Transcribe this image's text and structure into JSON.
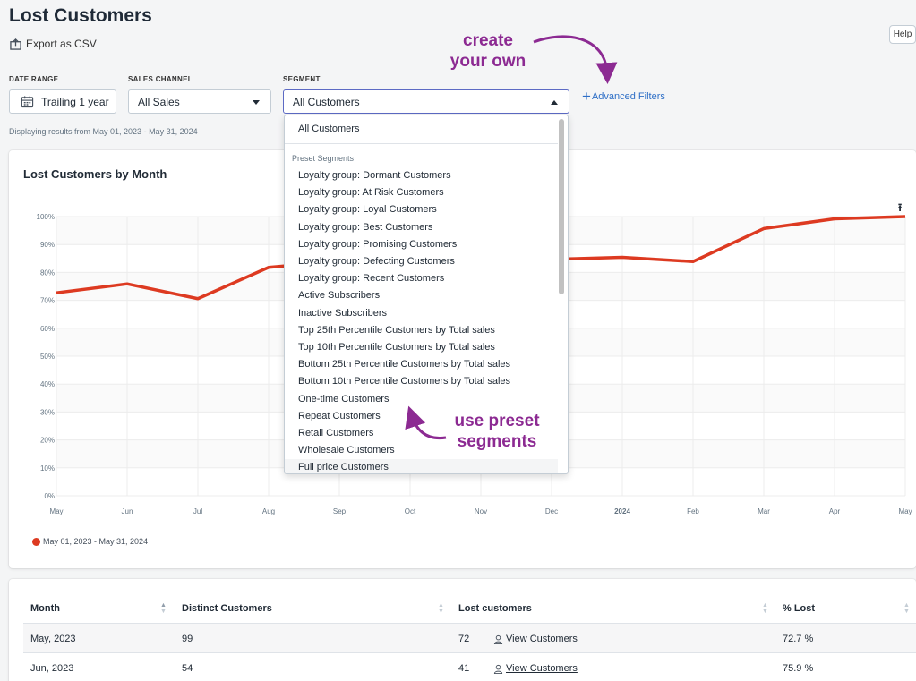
{
  "page": {
    "title": "Lost Customers",
    "export_label": "Export as CSV",
    "help_label": "Help"
  },
  "filters": {
    "date_range": {
      "label": "DATE RANGE",
      "value": "Trailing 1 year"
    },
    "sales_channel": {
      "label": "SALES CHANNEL",
      "value": "All Sales"
    },
    "segment": {
      "label": "SEGMENT",
      "value": "All Customers"
    },
    "advanced_label": "Advanced Filters",
    "displaying": "Displaying results from May 01, 2023 - May 31, 2024"
  },
  "annotations": {
    "create": "create your own",
    "preset": "use preset segments"
  },
  "dropdown": {
    "all_option": "All Customers",
    "group_label": "Preset Segments",
    "options": [
      "Loyalty group: Dormant Customers",
      "Loyalty group: At Risk Customers",
      "Loyalty group: Loyal Customers",
      "Loyalty group: Best Customers",
      "Loyalty group: Promising Customers",
      "Loyalty group: Defecting Customers",
      "Loyalty group: Recent Customers",
      "Active Subscribers",
      "Inactive Subscribers",
      "Top 25th Percentile Customers by Total sales",
      "Top 10th Percentile Customers by Total sales",
      "Bottom 25th Percentile Customers by Total sales",
      "Bottom 10th Percentile Customers by Total sales",
      "One-time Customers",
      "Repeat Customers",
      "Retail Customers",
      "Wholesale Customers",
      "Full price Customers"
    ]
  },
  "colors": {
    "line": "#dd3a21",
    "annotation": "#8c2a92",
    "link": "#2d6ec6"
  },
  "chart_data": {
    "type": "line",
    "title": "Lost Customers by Month",
    "x": [
      "May",
      "Jun",
      "Jul",
      "Aug",
      "Sep",
      "Oct",
      "Nov",
      "Dec",
      "2024",
      "Feb",
      "Mar",
      "Apr",
      "May"
    ],
    "series": [
      {
        "name": "May 01, 2023 - May 31, 2024",
        "values": [
          72.7,
          75.9,
          70.6,
          81.8,
          84.0,
          84.5,
          84.3,
          84.7,
          85.4,
          83.9,
          95.7,
          99.2,
          100.0
        ]
      }
    ],
    "y_ticks": [
      "0%",
      "10%",
      "20%",
      "30%",
      "40%",
      "50%",
      "60%",
      "70%",
      "80%",
      "90%",
      "100%"
    ],
    "ylim": [
      0,
      100
    ],
    "grid": true,
    "legend": "bottom-left"
  },
  "table": {
    "headers": [
      "Month",
      "Distinct Customers",
      "Lost customers",
      "% Lost"
    ],
    "view_label": "View Customers",
    "rows": [
      {
        "month": "May, 2023",
        "distinct": "99",
        "lost": "72",
        "pct": "72.7 %"
      },
      {
        "month": "Jun, 2023",
        "distinct": "54",
        "lost": "41",
        "pct": "75.9 %"
      }
    ]
  }
}
